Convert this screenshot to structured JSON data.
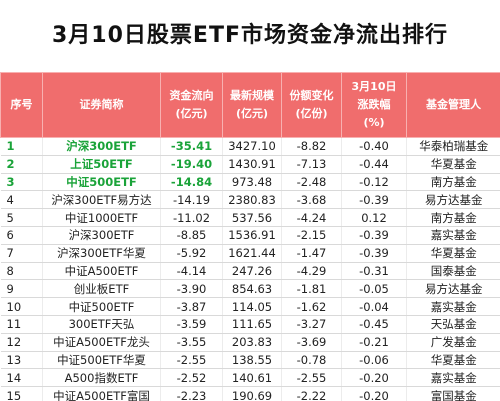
{
  "title": "3月10日股票ETF市场资金净流出排行",
  "headers": {
    "no": "序号",
    "name": "证券简称",
    "flow_line1": "资金流向",
    "flow_line2": "(亿元)",
    "scale_line1": "最新规模",
    "scale_line2": "(亿元)",
    "share_line1": "份额变化",
    "share_line2": "(亿份)",
    "pct_line1": "3月10日",
    "pct_line2": "涨跌幅",
    "pct_line3": "(%)",
    "mgr": "基金管理人"
  },
  "colors": {
    "header_bg": "#f06d6d",
    "highlight_green": "#1aa339"
  },
  "rows": [
    {
      "no": "1",
      "name": "沪深300ETF",
      "flow": "-35.41",
      "scale": "3427.10",
      "share": "-8.82",
      "pct": "-0.40",
      "mgr": "华泰柏瑞基金"
    },
    {
      "no": "2",
      "name": "上证50ETF",
      "flow": "-19.40",
      "scale": "1430.91",
      "share": "-7.13",
      "pct": "-0.44",
      "mgr": "华夏基金"
    },
    {
      "no": "3",
      "name": "中证500ETF",
      "flow": "-14.84",
      "scale": "973.48",
      "share": "-2.48",
      "pct": "-0.12",
      "mgr": "南方基金"
    },
    {
      "no": "4",
      "name": "沪深300ETF易方达",
      "flow": "-14.19",
      "scale": "2380.83",
      "share": "-3.68",
      "pct": "-0.39",
      "mgr": "易方达基金"
    },
    {
      "no": "5",
      "name": "中证1000ETF",
      "flow": "-11.02",
      "scale": "537.56",
      "share": "-4.24",
      "pct": "0.12",
      "mgr": "南方基金"
    },
    {
      "no": "6",
      "name": "沪深300ETF",
      "flow": "-8.85",
      "scale": "1536.91",
      "share": "-2.15",
      "pct": "-0.39",
      "mgr": "嘉实基金"
    },
    {
      "no": "7",
      "name": "沪深300ETF华夏",
      "flow": "-5.92",
      "scale": "1621.44",
      "share": "-1.47",
      "pct": "-0.39",
      "mgr": "华夏基金"
    },
    {
      "no": "8",
      "name": "中证A500ETF",
      "flow": "-4.14",
      "scale": "247.26",
      "share": "-4.29",
      "pct": "-0.31",
      "mgr": "国泰基金"
    },
    {
      "no": "9",
      "name": "创业板ETF",
      "flow": "-3.90",
      "scale": "854.63",
      "share": "-1.81",
      "pct": "-0.05",
      "mgr": "易方达基金"
    },
    {
      "no": "10",
      "name": "中证500ETF",
      "flow": "-3.87",
      "scale": "114.05",
      "share": "-1.62",
      "pct": "-0.04",
      "mgr": "嘉实基金"
    },
    {
      "no": "11",
      "name": "300ETF天弘",
      "flow": "-3.59",
      "scale": "111.65",
      "share": "-3.27",
      "pct": "-0.45",
      "mgr": "天弘基金"
    },
    {
      "no": "12",
      "name": "中证A500ETF龙头",
      "flow": "-3.55",
      "scale": "203.83",
      "share": "-3.69",
      "pct": "-0.21",
      "mgr": "广发基金"
    },
    {
      "no": "13",
      "name": "中证500ETF华夏",
      "flow": "-2.55",
      "scale": "138.55",
      "share": "-0.78",
      "pct": "-0.06",
      "mgr": "华夏基金"
    },
    {
      "no": "14",
      "name": "A500指数ETF",
      "flow": "-2.52",
      "scale": "140.61",
      "share": "-2.55",
      "pct": "-0.20",
      "mgr": "嘉实基金"
    },
    {
      "no": "15",
      "name": "中证A500ETF富国",
      "flow": "-2.23",
      "scale": "190.69",
      "share": "-2.22",
      "pct": "-0.20",
      "mgr": "富国基金"
    }
  ]
}
